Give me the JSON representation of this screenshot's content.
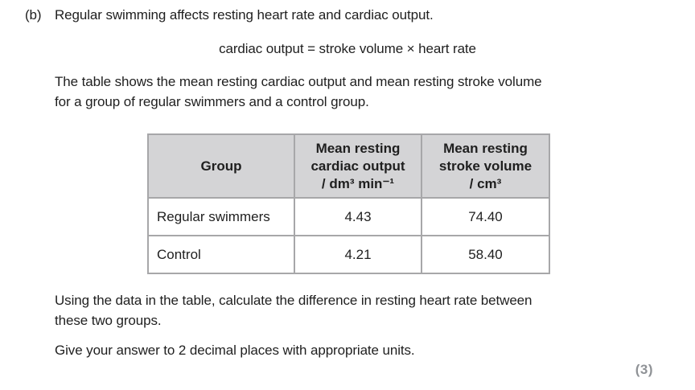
{
  "question": {
    "part_label": "(b)",
    "intro": "Regular swimming affects resting heart rate and cardiac output.",
    "formula": "cardiac output = stroke volume × heart rate",
    "description_line1": "The table shows the mean resting cardiac output and mean resting stroke volume",
    "description_line2": "for a group of regular swimmers and a control group.",
    "task_line1": "Using the data in the table, calculate the difference in resting heart rate between",
    "task_line2": "these two groups.",
    "instruction": "Give your answer to 2 decimal places with appropriate units.",
    "marks": "(3)"
  },
  "table": {
    "col1_header": "Group",
    "col2_header_lines": [
      "Mean resting",
      "cardiac output",
      "/ dm³ min⁻¹"
    ],
    "col3_header_lines": [
      "Mean resting",
      "stroke volume",
      "/ cm³"
    ],
    "rows": [
      {
        "group": "Regular swimmers",
        "cardiac_output": "4.43",
        "stroke_volume": "74.40"
      },
      {
        "group": "Control",
        "cardiac_output": "4.21",
        "stroke_volume": "58.40"
      }
    ]
  },
  "colors": {
    "text": "#1f1f1f",
    "table_header_bg": "#d4d4d6",
    "table_border": "#a7a7a9",
    "table_outer_border": "#8e8e90",
    "marks_gray": "#8f9296"
  }
}
